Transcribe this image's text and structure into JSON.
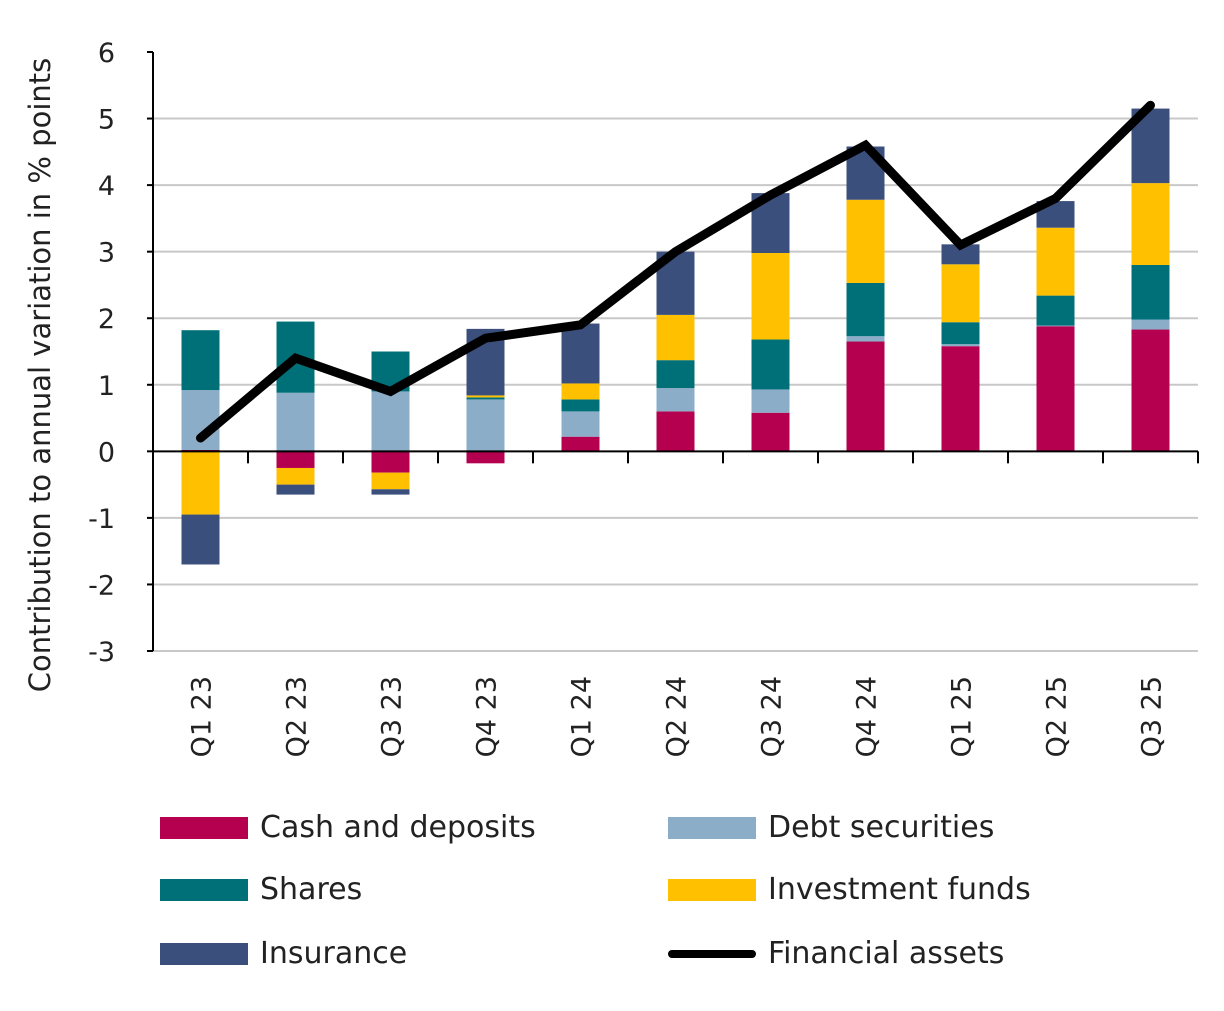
{
  "chart_data": {
    "type": "bar",
    "stacked": true,
    "title": "",
    "xlabel": "",
    "ylabel": "Contribution to annual variation in % points",
    "ylim": [
      -3,
      6
    ],
    "yticks": [
      6,
      5,
      4,
      3,
      2,
      1,
      0,
      -1,
      -2,
      -3
    ],
    "grid": true,
    "categories": [
      "Q1 23",
      "Q2 23",
      "Q3 23",
      "Q4 23",
      "Q1 24",
      "Q2 24",
      "Q3 24",
      "Q4 24",
      "Q1 25",
      "Q2 25",
      "Q3 25"
    ],
    "series": [
      {
        "name": "Cash and deposits",
        "color": "#B5004F",
        "kind": "bar",
        "values": [
          0.02,
          -0.25,
          -0.32,
          -0.18,
          0.22,
          0.6,
          0.58,
          1.65,
          1.58,
          1.88,
          1.83
        ]
      },
      {
        "name": "Debt securities",
        "color": "#8BADC8",
        "kind": "bar",
        "values": [
          0.9,
          0.88,
          0.9,
          0.78,
          0.38,
          0.35,
          0.35,
          0.08,
          0.03,
          0.01,
          0.15
        ]
      },
      {
        "name": "Shares",
        "color": "#007078",
        "kind": "bar",
        "values": [
          0.9,
          1.07,
          0.6,
          0.03,
          0.18,
          0.42,
          0.75,
          0.8,
          0.33,
          0.45,
          0.82
        ]
      },
      {
        "name": "Investment funds",
        "color": "#FFC000",
        "kind": "bar",
        "values": [
          -0.95,
          -0.25,
          -0.25,
          0.03,
          0.24,
          0.68,
          1.3,
          1.25,
          0.87,
          1.02,
          1.23
        ]
      },
      {
        "name": "Insurance",
        "color": "#3B4F7D",
        "kind": "bar",
        "values": [
          -0.75,
          -0.15,
          -0.08,
          1.0,
          0.9,
          0.95,
          0.9,
          0.8,
          0.3,
          0.4,
          1.12
        ]
      },
      {
        "name": "Financial assets",
        "color": "#000000",
        "kind": "line",
        "values": [
          0.2,
          1.4,
          0.9,
          1.7,
          1.9,
          3.0,
          3.85,
          4.6,
          3.1,
          3.8,
          5.2
        ]
      }
    ],
    "legend_position": "bottom"
  }
}
